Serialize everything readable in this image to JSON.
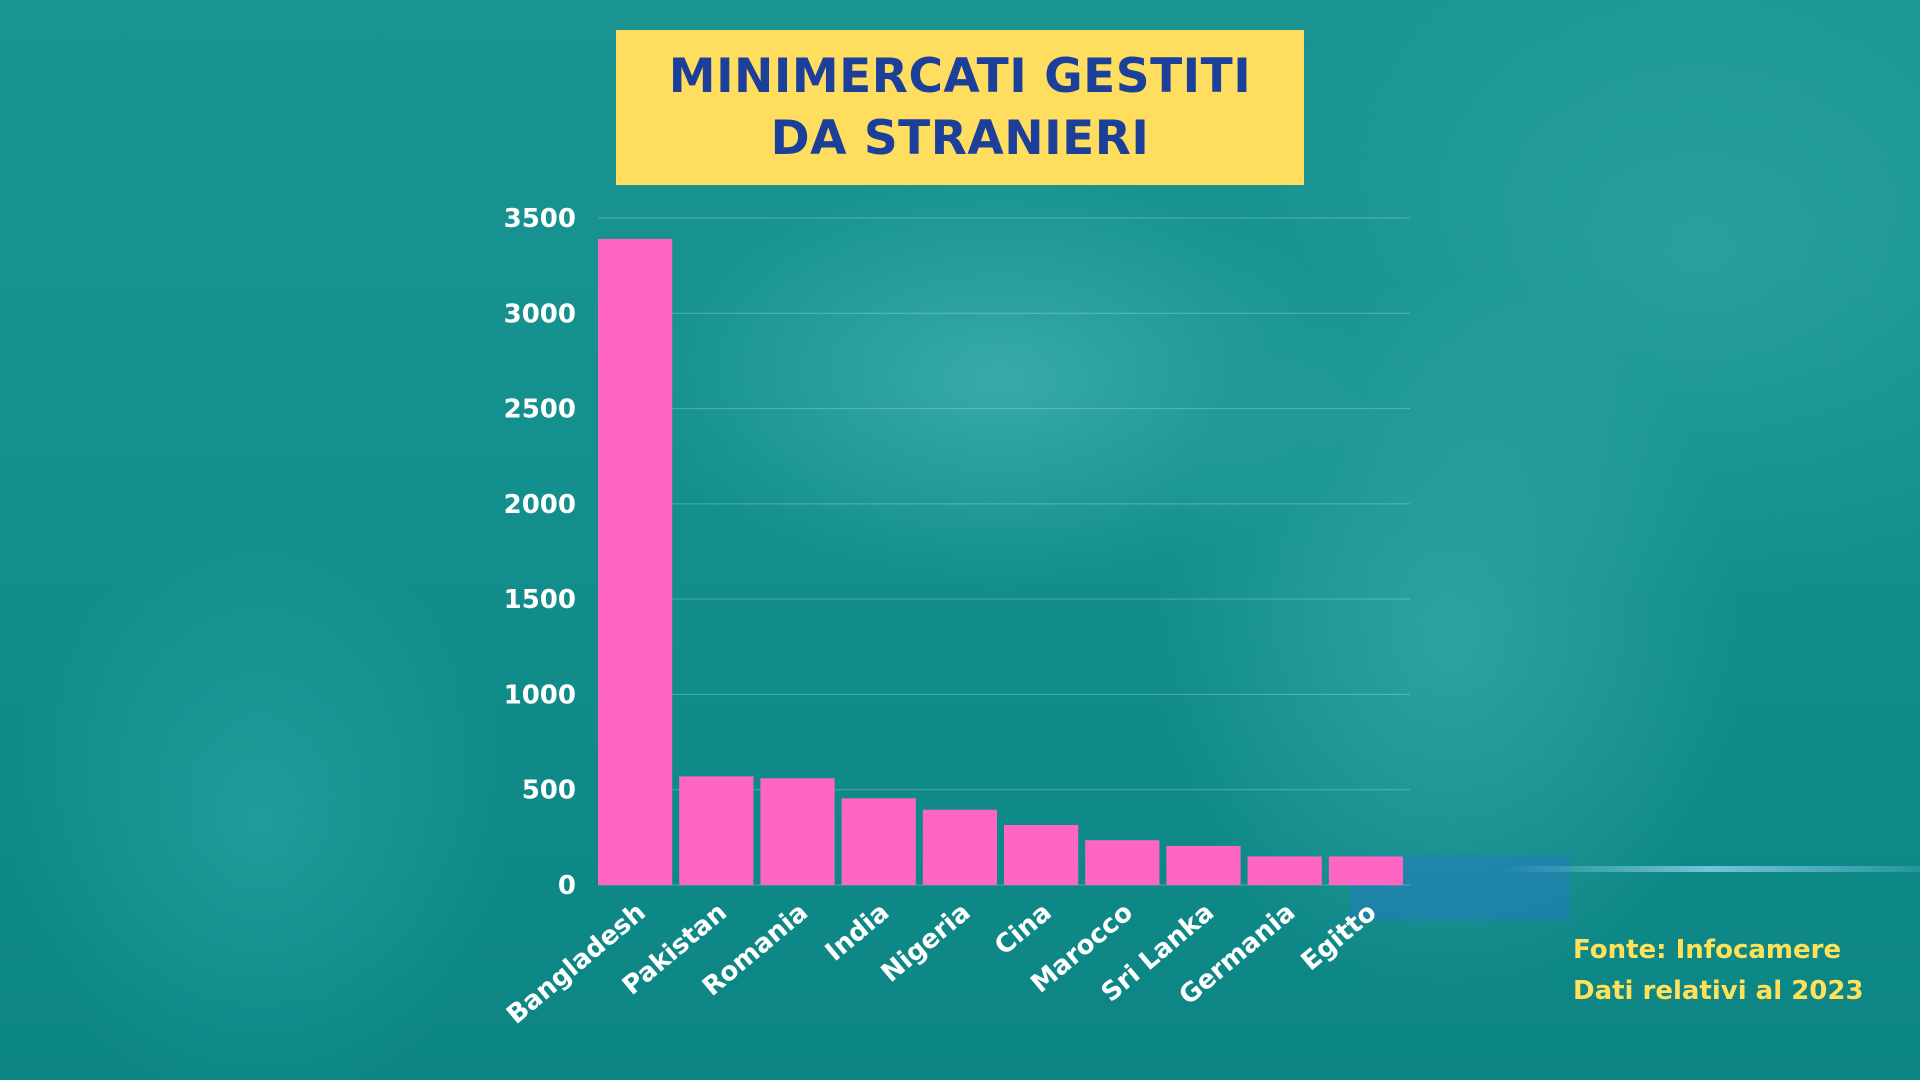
{
  "title": {
    "line1": "MINIMERCATI GESTITI",
    "line2": "DA STRANIERI"
  },
  "source": {
    "line1": "Fonte: Infocamere",
    "line2": "Dati relativi al 2023"
  },
  "colors": {
    "bar": "#ff66c4",
    "title_bg": "#ffdd5e",
    "title_text": "#1c3f9a",
    "source_text": "#ffe25a",
    "axis_text": "#ffffff"
  },
  "chart_data": {
    "type": "bar",
    "title": "MINIMERCATI GESTITI DA STRANIERI",
    "categories": [
      "Bangladesh",
      "Pakistan",
      "Romania",
      "India",
      "Nigeria",
      "Cina",
      "Marocco",
      "Sri Lanka",
      "Germania",
      "Egitto"
    ],
    "values": [
      3390,
      570,
      560,
      455,
      395,
      315,
      235,
      205,
      150,
      150
    ],
    "xlabel": "",
    "ylabel": "",
    "ylim": [
      0,
      3500
    ],
    "yticks": [
      0,
      500,
      1000,
      1500,
      2000,
      2500,
      3000,
      3500
    ],
    "grid": true,
    "legend": "none"
  }
}
